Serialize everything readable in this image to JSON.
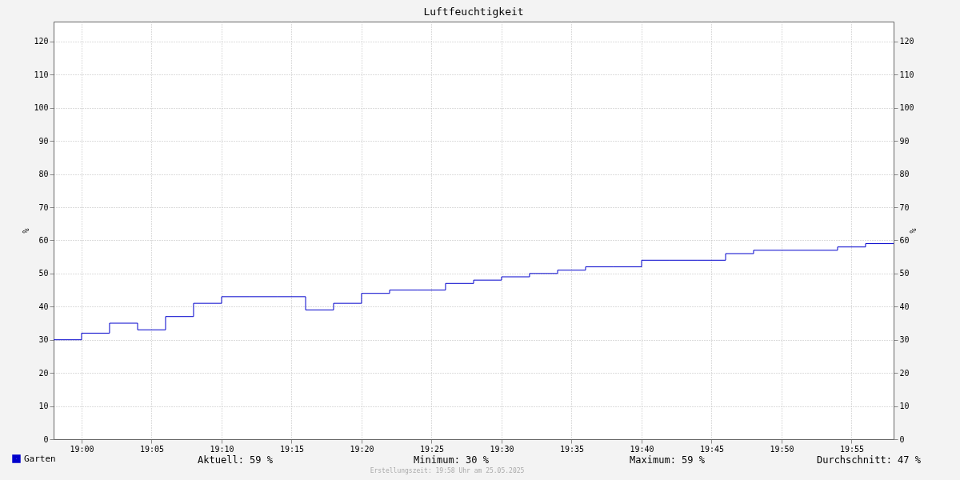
{
  "chart_data": {
    "type": "step",
    "title": "Luftfeuchtigkeit",
    "ylabel": "%",
    "y2label": "%",
    "x": [
      18.9667,
      19.0,
      19.0333,
      19.0667,
      19.1,
      19.1333,
      19.1667,
      19.2,
      19.2333,
      19.2667,
      19.3,
      19.3333,
      19.3667,
      19.4,
      19.4333,
      19.4667,
      19.5,
      19.5333,
      19.5667,
      19.6,
      19.6333,
      19.6667,
      19.7,
      19.7333,
      19.7667,
      19.8,
      19.8333,
      19.8667,
      19.9,
      19.9333,
      19.9667
    ],
    "series": [
      {
        "name": "Garten",
        "color": "#0000cc",
        "values": [
          30,
          32,
          35,
          33,
          37,
          41,
          43,
          43,
          43,
          39,
          41,
          44,
          45,
          45,
          47,
          48,
          49,
          50,
          51,
          52,
          52,
          54,
          54,
          54,
          56,
          57,
          57,
          57,
          58,
          59,
          59
        ]
      }
    ],
    "xlim": [
      18.9667,
      19.9667
    ],
    "xticks": [
      {
        "value": 19.0,
        "label": "19:00"
      },
      {
        "value": 19.0833,
        "label": "19:05"
      },
      {
        "value": 19.1667,
        "label": "19:10"
      },
      {
        "value": 19.25,
        "label": "19:15"
      },
      {
        "value": 19.3333,
        "label": "19:20"
      },
      {
        "value": 19.4167,
        "label": "19:25"
      },
      {
        "value": 19.5,
        "label": "19:30"
      },
      {
        "value": 19.5833,
        "label": "19:35"
      },
      {
        "value": 19.6667,
        "label": "19:40"
      },
      {
        "value": 19.75,
        "label": "19:45"
      },
      {
        "value": 19.8333,
        "label": "19:50"
      },
      {
        "value": 19.9167,
        "label": "19:55"
      }
    ],
    "ylim": [
      0,
      126
    ],
    "yticks": [
      0,
      10,
      20,
      30,
      40,
      50,
      60,
      70,
      80,
      90,
      100,
      110,
      120
    ],
    "y2lim": [
      0,
      126
    ],
    "y2ticks": [
      0,
      10,
      20,
      30,
      40,
      50,
      60,
      70,
      80,
      90,
      100,
      110,
      120
    ],
    "grid": true,
    "legend": "bottom left",
    "line_style": "solid",
    "marker": "none",
    "annotations": [
      "Aktuell:  59 %",
      "Minimum:  30 %",
      "Maximum:  59 %",
      "Durchschnitt:  47 %",
      "Erstellungszeit: 19:58 Uhr am 25.05.2025"
    ]
  }
}
